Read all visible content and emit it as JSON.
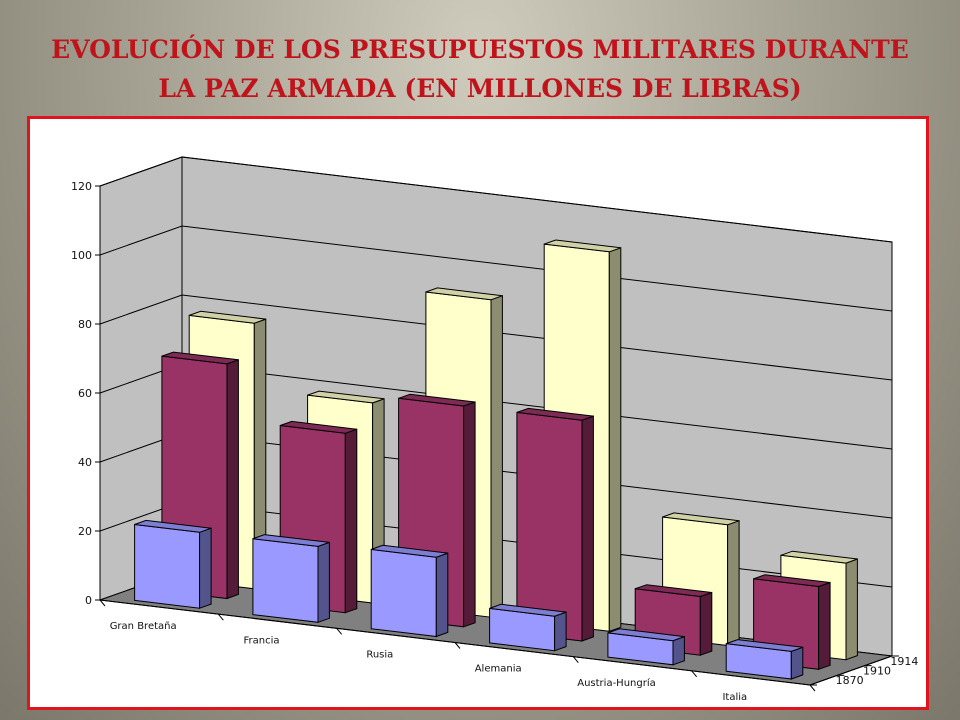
{
  "slide": {
    "title_line1": "EVOLUCIÓN DE LOS PRESUPUESTOS MILITARES DURANTE",
    "title_line2": "LA PAZ  ARMADA (EN MILLONES DE LIBRAS)"
  },
  "colors": {
    "title": "#c0141c",
    "frame_border": "#e0141c",
    "series_1870": "#9999ff",
    "series_1910": "#993366",
    "series_1914": "#ffffcc",
    "walls": "#c0c0c0",
    "floor": "#808080"
  },
  "chart_data": {
    "type": "bar",
    "subtype": "3d-clustered-depth",
    "title": "",
    "xlabel": "",
    "ylabel": "",
    "ylim": [
      0,
      120
    ],
    "yticks": [
      0,
      20,
      40,
      60,
      80,
      100,
      120
    ],
    "grid": true,
    "categories": [
      "Gran Bretaña",
      "Francia",
      "Rusia",
      "Alemania",
      "Austria-Hungría",
      "Italia"
    ],
    "series": [
      {
        "name": "1870",
        "values": [
          22,
          22,
          23,
          10,
          7,
          8
        ]
      },
      {
        "name": "1910",
        "values": [
          68,
          52,
          64,
          64,
          17,
          24
        ]
      },
      {
        "name": "1914",
        "values": [
          77,
          58,
          92,
          110,
          35,
          28
        ]
      }
    ]
  }
}
